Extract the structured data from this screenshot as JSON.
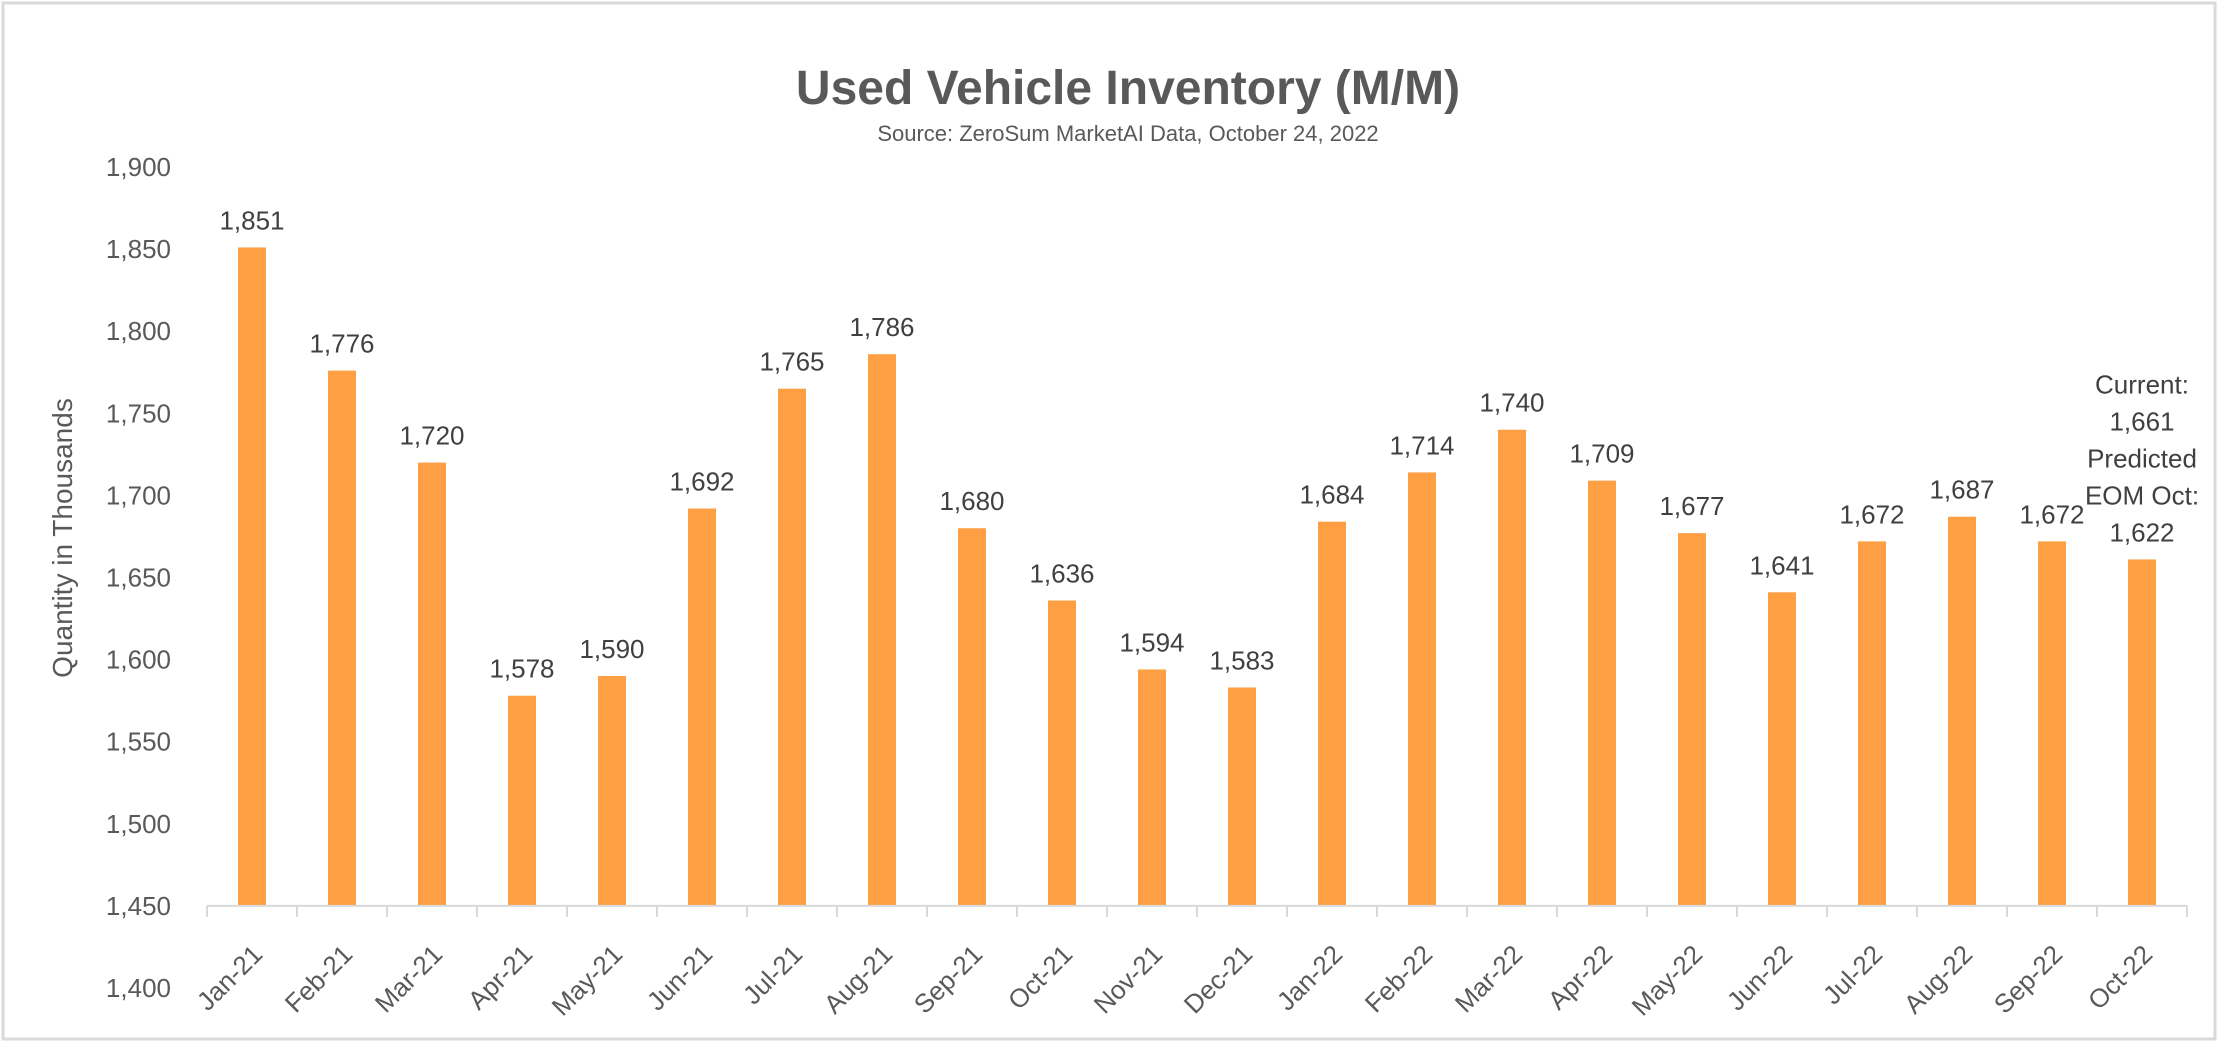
{
  "chart_data": {
    "type": "bar",
    "title": "Used Vehicle Inventory (M/M)",
    "subtitle": "Source: ZeroSum MarketAI Data, October 24, 2022",
    "xlabel": "",
    "ylabel": "Quantity in Thousands",
    "ylim": [
      1400,
      1900
    ],
    "yticks": [
      1400,
      1450,
      1500,
      1550,
      1600,
      1650,
      1700,
      1750,
      1800,
      1850,
      1900
    ],
    "ytick_labels": [
      "1,400",
      "1,450",
      "1,500",
      "1,550",
      "1,600",
      "1,650",
      "1,700",
      "1,750",
      "1,800",
      "1,850",
      "1,900"
    ],
    "bar_base": 1450,
    "grid": false,
    "legend": "none",
    "bar_color": "#FD9F42",
    "categories": [
      "Jan-21",
      "Feb-21",
      "Mar-21",
      "Apr-21",
      "May-21",
      "Jun-21",
      "Jul-21",
      "Aug-21",
      "Sep-21",
      "Oct-21",
      "Nov-21",
      "Dec-21",
      "Jan-22",
      "Feb-22",
      "Mar-22",
      "Apr-22",
      "May-22",
      "Jun-22",
      "Jul-22",
      "Aug-22",
      "Sep-22",
      "Oct-22"
    ],
    "values": [
      1851,
      1776,
      1720,
      1578,
      1590,
      1692,
      1765,
      1786,
      1680,
      1636,
      1594,
      1583,
      1684,
      1714,
      1740,
      1709,
      1677,
      1641,
      1672,
      1687,
      1672,
      1661
    ],
    "data_labels": [
      "1,851",
      "1,776",
      "1,720",
      "1,578",
      "1,590",
      "1,692",
      "1,765",
      "1,786",
      "1,680",
      "1,636",
      "1,594",
      "1,583",
      "1,684",
      "1,714",
      "1,740",
      "1,709",
      "1,677",
      "1,641",
      "1,672",
      "1,687",
      "1,672",
      ""
    ],
    "last_annotation": [
      "Current:",
      "1,661",
      "Predicted",
      "EOM Oct:",
      "1,622"
    ]
  }
}
